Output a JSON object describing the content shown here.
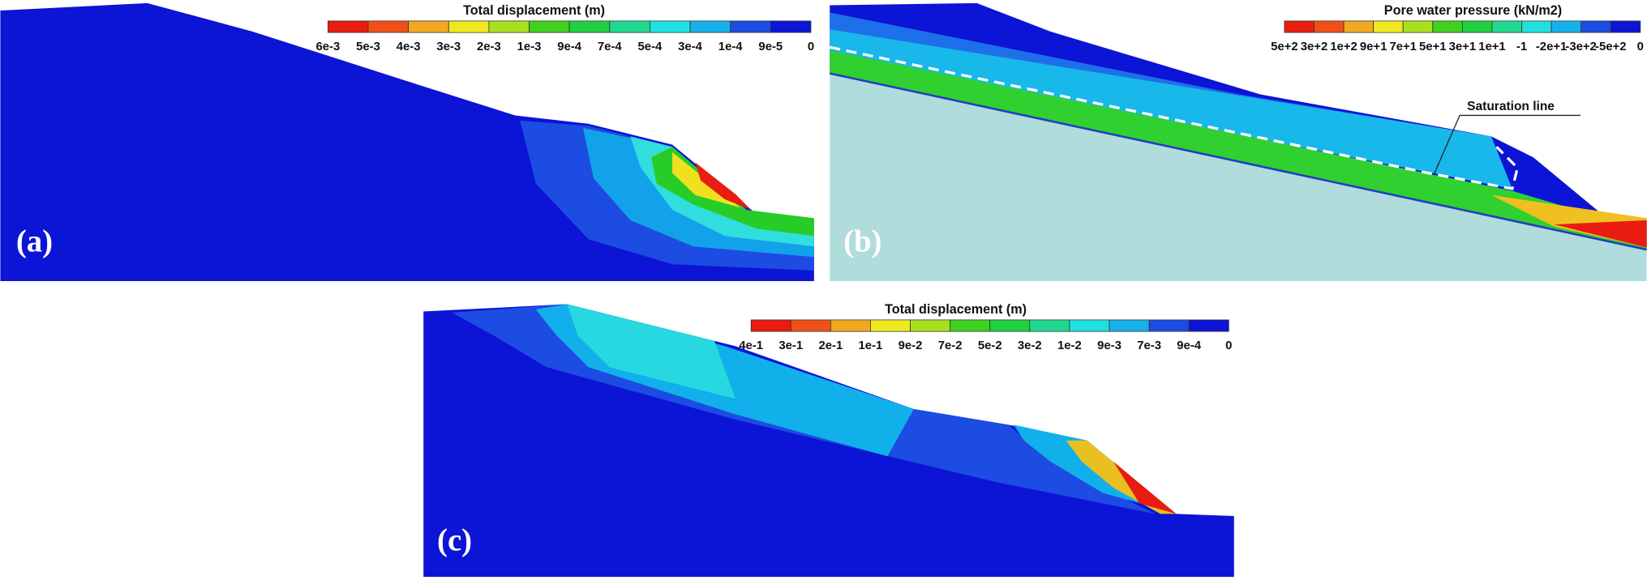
{
  "panels": [
    {
      "label": "(a)",
      "legend": {
        "title": "Total displacement (m)",
        "labels": [
          "6e-3",
          "5e-3",
          "4e-3",
          "3e-3",
          "2e-3",
          "1e-3",
          "9e-4",
          "7e-4",
          "5e-4",
          "3e-4",
          "1e-4",
          "9e-5",
          "0"
        ]
      }
    },
    {
      "label": "(b)",
      "legend": {
        "title": "Pore water pressure (kN/m2)",
        "labels": [
          "5e+2",
          "3e+2",
          "1e+2",
          "9e+1",
          "7e+1",
          "5e+1",
          "3e+1",
          "1e+1",
          "-1",
          "-2e+1",
          "-3e+2",
          "-5e+2",
          "0"
        ]
      },
      "annotation": "Saturation line"
    },
    {
      "label": "(c)",
      "legend": {
        "title": "Total displacement (m)",
        "labels": [
          "4e-1",
          "3e-1",
          "2e-1",
          "1e-1",
          "9e-2",
          "7e-2",
          "5e-2",
          "3e-2",
          "1e-2",
          "9e-3",
          "7e-3",
          "9e-4",
          "0"
        ]
      }
    }
  ]
}
